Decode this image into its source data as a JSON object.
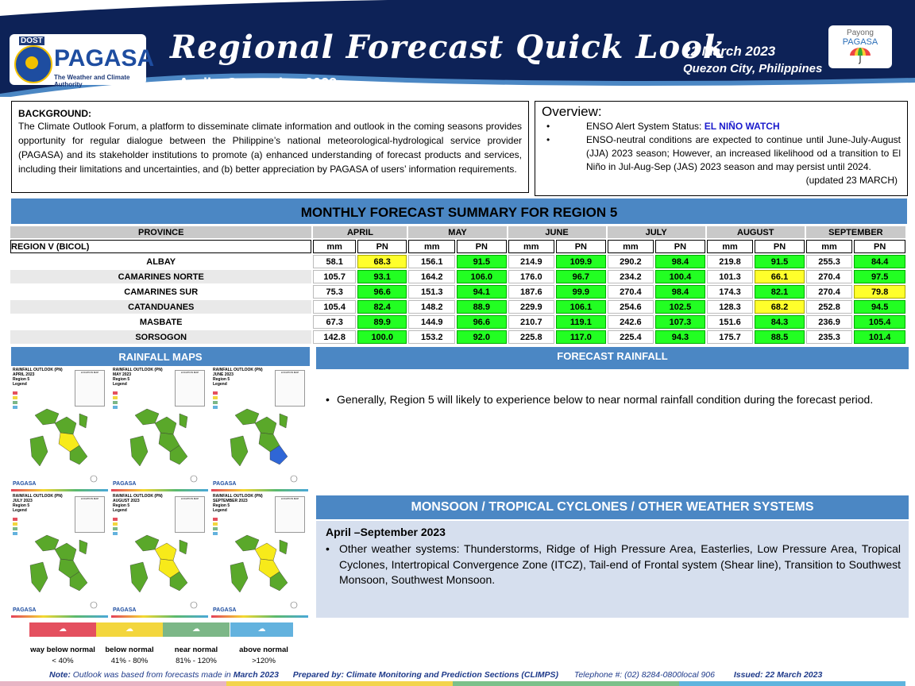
{
  "header": {
    "title": "Regional Forecast Quick Look",
    "period": "April – September 2023",
    "date": "22 March 2023",
    "location": "Quezon City, Philippines",
    "logo": {
      "top": "DOST",
      "name": "PAGASA",
      "tagline": "The Weather and Climate Authority"
    },
    "payong": {
      "line1": "Payong",
      "line2": "PAGASA"
    },
    "colors": {
      "navy": "#0d2257",
      "accent": "#4b87c4"
    }
  },
  "background": {
    "heading": "BACKGROUND:",
    "text": "The Climate Outlook Forum, a platform to disseminate climate information and outlook in the coming seasons provides opportunity for regular dialogue between the Philippine’s national meteorological-hydrological service provider (PAGASA) and its stakeholder institutions to promote (a) enhanced understanding of forecast products and services, including their limitations and uncertainties, and (b) better appreciation by PAGASA of users’ information requirements."
  },
  "overview": {
    "heading": "Overview:",
    "enso_label": "ENSO Alert System Status:",
    "enso_status": "EL NIÑO WATCH",
    "text": "ENSO-neutral conditions are expected to continue until June-July-August (JJA) 2023 season; However, an increased likelihood od a transition to El Niño in Jul-Aug-Sep (JAS) 2023 season and may persist until 2024.",
    "updated": "(updated 23 MARCH)"
  },
  "forecast_table": {
    "title": "MONTHLY FORECAST SUMMARY FOR REGION 5",
    "province_header": "PROVINCE",
    "region_label": "REGION V (BICOL)",
    "months": [
      "APRIL",
      "MAY",
      "JUNE",
      "JULY",
      "AUGUST",
      "SEPTEMBER"
    ],
    "sub_mm": "mm",
    "sub_pn": "PN",
    "rows": [
      {
        "province": "ALBAY",
        "values": [
          [
            "58.1",
            "68.3",
            "y"
          ],
          [
            "156.1",
            "91.5",
            "g"
          ],
          [
            "214.9",
            "109.9",
            "g"
          ],
          [
            "290.2",
            "98.4",
            "g"
          ],
          [
            "219.8",
            "91.5",
            "g"
          ],
          [
            "255.3",
            "84.4",
            "g"
          ]
        ]
      },
      {
        "province": "CAMARINES NORTE",
        "values": [
          [
            "105.7",
            "93.1",
            "g"
          ],
          [
            "164.2",
            "106.0",
            "g"
          ],
          [
            "176.0",
            "96.7",
            "g"
          ],
          [
            "234.2",
            "100.4",
            "g"
          ],
          [
            "101.3",
            "66.1",
            "y"
          ],
          [
            "270.4",
            "97.5",
            "g"
          ]
        ]
      },
      {
        "province": "CAMARINES SUR",
        "values": [
          [
            "75.3",
            "96.6",
            "g"
          ],
          [
            "151.3",
            "94.1",
            "g"
          ],
          [
            "187.6",
            "99.9",
            "g"
          ],
          [
            "270.4",
            "98.4",
            "g"
          ],
          [
            "174.3",
            "82.1",
            "g"
          ],
          [
            "270.4",
            "79.8",
            "y"
          ]
        ]
      },
      {
        "province": "CATANDUANES",
        "values": [
          [
            "105.4",
            "82.4",
            "g"
          ],
          [
            "148.2",
            "88.9",
            "g"
          ],
          [
            "229.9",
            "106.1",
            "g"
          ],
          [
            "254.6",
            "102.5",
            "g"
          ],
          [
            "128.3",
            "68.2",
            "y"
          ],
          [
            "252.8",
            "94.5",
            "g"
          ]
        ]
      },
      {
        "province": "MASBATE",
        "values": [
          [
            "67.3",
            "89.9",
            "g"
          ],
          [
            "144.9",
            "96.6",
            "g"
          ],
          [
            "210.7",
            "119.1",
            "g"
          ],
          [
            "242.6",
            "107.3",
            "g"
          ],
          [
            "151.6",
            "84.3",
            "g"
          ],
          [
            "236.9",
            "105.4",
            "g"
          ]
        ]
      },
      {
        "province": "SORSOGON",
        "values": [
          [
            "142.8",
            "100.0",
            "g"
          ],
          [
            "153.2",
            "92.0",
            "g"
          ],
          [
            "225.8",
            "117.0",
            "g"
          ],
          [
            "225.4",
            "94.3",
            "g"
          ],
          [
            "175.7",
            "88.5",
            "g"
          ],
          [
            "235.3",
            "101.4",
            "g"
          ]
        ]
      }
    ]
  },
  "rainfall_maps": {
    "heading": "RAINFALL MAPS",
    "maps": [
      {
        "title": "RAINFALL OUTLOOK (PN)",
        "month": "APRIL 2023",
        "region": "Region 5",
        "scheme": "april"
      },
      {
        "title": "RAINFALL OUTLOOK (PN)",
        "month": "MAY 2023",
        "region": "Region 5",
        "scheme": "green"
      },
      {
        "title": "RAINFALL OUTLOOK (PN)",
        "month": "JUNE 2023",
        "region": "Region 5",
        "scheme": "june"
      },
      {
        "title": "RAINFALL OUTLOOK (PN)",
        "month": "JULY 2023",
        "region": "Region 5",
        "scheme": "green"
      },
      {
        "title": "RAINFALL OUTLOOK (PN)",
        "month": "AUGUST 2023",
        "region": "Region 5",
        "scheme": "august"
      },
      {
        "title": "RAINFALL OUTLOOK (PN)",
        "month": "SEPTEMBER 2023",
        "region": "Region 5",
        "scheme": "september"
      }
    ],
    "map_legend_label": "Legend",
    "location_label": "LOCATION MAP",
    "map_logo": "PAGASA",
    "scale": [
      {
        "label": "way below normal",
        "range": "< 40%",
        "color": "#e4505f"
      },
      {
        "label": "below normal",
        "range": "41% -  80%",
        "color": "#f3d63d"
      },
      {
        "label": "near normal",
        "range": "81% - 120%",
        "color": "#7cb787"
      },
      {
        "label": "above normal",
        "range": ">120%",
        "color": "#63b2de"
      }
    ]
  },
  "forecast_rainfall": {
    "heading": "FORECAST RAINFALL",
    "text": "Generally, Region 5 will likely to experience below to near normal rainfall condition during the forecast period."
  },
  "systems": {
    "heading": "MONSOON / TROPICAL CYCLONES / OTHER WEATHER SYSTEMS",
    "period": "April –September 2023",
    "text": "Other weather systems: Thunderstorms,  Ridge of High Pressure Area,  Easterlies, Low Pressure Area, Tropical Cyclones, Intertropical Convergence Zone (ITCZ), Tail-end of Frontal system (Shear line), Transition to Southwest Monsoon, Southwest Monsoon."
  },
  "footer": {
    "note_label": "Note:",
    "note_text": "Outlook was based from forecasts made in",
    "note_month": "March 2023",
    "prepared": "Prepared by: Climate Monitoring and Prediction Sections (CLIMPS)",
    "telephone": "Telephone #: (02) 8284-0800local 906",
    "issued": "Issued: 22 March 2023"
  }
}
